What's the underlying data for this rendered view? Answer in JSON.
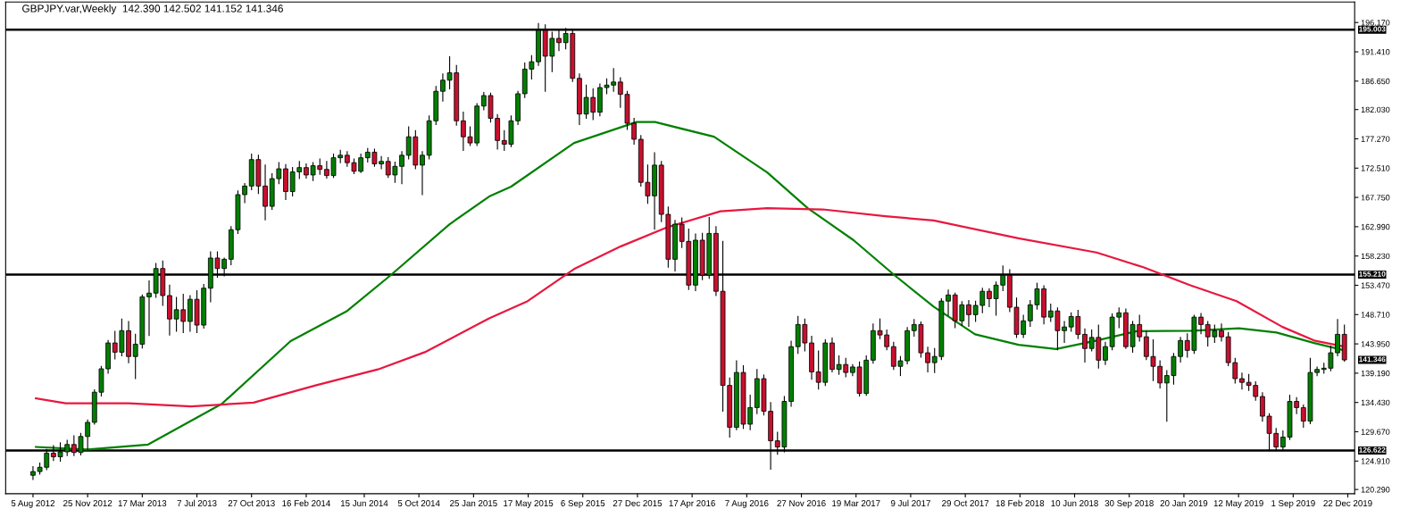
{
  "chart_data": {
    "type": "candlestick",
    "title": "GBPJPY.var,Weekly  142.390 142.502 141.152 141.346",
    "x": [
      "2012-08-05",
      "2012-08-19",
      "2012-09-02",
      "2012-09-16",
      "2012-09-30",
      "2012-10-14",
      "2012-10-28",
      "2012-11-11",
      "2012-11-25",
      "2012-12-09",
      "2012-12-23",
      "2013-01-06",
      "2013-01-20",
      "2013-02-03",
      "2013-02-17",
      "2013-03-03",
      "2013-03-17",
      "2013-03-31",
      "2013-04-14",
      "2013-04-28",
      "2013-05-12",
      "2013-05-26",
      "2013-06-09",
      "2013-06-23",
      "2013-07-07",
      "2013-07-21",
      "2013-08-04",
      "2013-08-18",
      "2013-09-01",
      "2013-09-15",
      "2013-09-29",
      "2013-10-13",
      "2013-10-27",
      "2013-11-10",
      "2013-11-24",
      "2013-12-08",
      "2013-12-22",
      "2014-01-05",
      "2014-01-19",
      "2014-02-02",
      "2014-02-16",
      "2014-03-02",
      "2014-03-16",
      "2014-03-30",
      "2014-04-13",
      "2014-04-27",
      "2014-05-11",
      "2014-05-25",
      "2014-06-08",
      "2014-06-22",
      "2014-07-06",
      "2014-07-20",
      "2014-08-03",
      "2014-08-17",
      "2014-08-31",
      "2014-09-14",
      "2014-09-28",
      "2014-10-12",
      "2014-10-26",
      "2014-11-09",
      "2014-11-23",
      "2014-12-07",
      "2014-12-21",
      "2015-01-04",
      "2015-01-18",
      "2015-02-01",
      "2015-02-15",
      "2015-03-01",
      "2015-03-15",
      "2015-03-29",
      "2015-04-12",
      "2015-04-26",
      "2015-05-10",
      "2015-05-24",
      "2015-06-07",
      "2015-06-21",
      "2015-07-05",
      "2015-07-19",
      "2015-08-02",
      "2015-08-16",
      "2015-08-30",
      "2015-09-13",
      "2015-09-27",
      "2015-10-11",
      "2015-10-25",
      "2015-11-08",
      "2015-11-22",
      "2015-12-06",
      "2015-12-20",
      "2016-01-03",
      "2016-01-17",
      "2016-01-31",
      "2016-02-14",
      "2016-02-28",
      "2016-03-13",
      "2016-03-27",
      "2016-04-10",
      "2016-04-24",
      "2016-05-08",
      "2016-05-22",
      "2016-06-05",
      "2016-06-19",
      "2016-07-03",
      "2016-07-17",
      "2016-07-31",
      "2016-08-14",
      "2016-08-28",
      "2016-09-11",
      "2016-09-25",
      "2016-10-09",
      "2016-10-23",
      "2016-11-06",
      "2016-11-20",
      "2016-12-04",
      "2016-12-18",
      "2017-01-01",
      "2017-01-15",
      "2017-01-29",
      "2017-02-12",
      "2017-02-26",
      "2017-03-12",
      "2017-03-26",
      "2017-04-09",
      "2017-04-23",
      "2017-05-07",
      "2017-05-21",
      "2017-06-04",
      "2017-06-18",
      "2017-07-02",
      "2017-07-16",
      "2017-07-30",
      "2017-08-13",
      "2017-08-27",
      "2017-09-10",
      "2017-09-24",
      "2017-10-08",
      "2017-10-22",
      "2017-11-05",
      "2017-11-19",
      "2017-12-03",
      "2017-12-17",
      "2017-12-31",
      "2018-01-14",
      "2018-01-28",
      "2018-02-11",
      "2018-02-25",
      "2018-03-11",
      "2018-03-25",
      "2018-04-08",
      "2018-04-22",
      "2018-05-06",
      "2018-05-20",
      "2018-06-03",
      "2018-06-17",
      "2018-07-01",
      "2018-07-15",
      "2018-07-29",
      "2018-08-12",
      "2018-08-26",
      "2018-09-09",
      "2018-09-23",
      "2018-10-07",
      "2018-10-21",
      "2018-11-04",
      "2018-11-18",
      "2018-12-02",
      "2018-12-16",
      "2018-12-30",
      "2019-01-13",
      "2019-01-27",
      "2019-02-10",
      "2019-02-24",
      "2019-03-10",
      "2019-03-24",
      "2019-04-07",
      "2019-04-21",
      "2019-05-05",
      "2019-05-19",
      "2019-06-02",
      "2019-06-16",
      "2019-06-30",
      "2019-07-14",
      "2019-07-28",
      "2019-08-11",
      "2019-08-25",
      "2019-09-08",
      "2019-09-22",
      "2019-10-06",
      "2019-10-20",
      "2019-11-03",
      "2019-11-17",
      "2019-12-01",
      "2019-12-15"
    ],
    "ohlc": [
      [
        122.6,
        124.0,
        121.9,
        123.2
      ],
      [
        123.2,
        124.6,
        122.8,
        123.9
      ],
      [
        123.9,
        126.8,
        123.5,
        126.2
      ],
      [
        126.2,
        127.4,
        125.0,
        125.6
      ],
      [
        125.6,
        127.9,
        124.9,
        126.4
      ],
      [
        126.4,
        128.3,
        125.8,
        127.6
      ],
      [
        127.6,
        129.0,
        125.8,
        126.3
      ],
      [
        126.3,
        129.4,
        125.9,
        128.9
      ],
      [
        128.9,
        131.6,
        126.8,
        131.2
      ],
      [
        131.2,
        136.5,
        130.9,
        136.1
      ],
      [
        136.1,
        140.3,
        135.5,
        139.9
      ],
      [
        139.9,
        144.5,
        139.2,
        144.1
      ],
      [
        144.1,
        146.0,
        141.5,
        142.6
      ],
      [
        142.6,
        148.0,
        142.0,
        146.1
      ],
      [
        146.1,
        147.6,
        140.9,
        141.9
      ],
      [
        141.9,
        145.5,
        138.3,
        143.9
      ],
      [
        143.9,
        151.9,
        143.3,
        151.6
      ],
      [
        151.6,
        154.2,
        145.3,
        152.2
      ],
      [
        152.2,
        157.0,
        151.5,
        156.2
      ],
      [
        156.2,
        157.4,
        150.2,
        151.8
      ],
      [
        151.8,
        153.5,
        145.4,
        148.0
      ],
      [
        148.0,
        151.5,
        146.0,
        149.5
      ],
      [
        149.5,
        152.0,
        145.8,
        147.6
      ],
      [
        147.6,
        151.8,
        146.0,
        151.2
      ],
      [
        151.2,
        152.6,
        145.8,
        147.0
      ],
      [
        147.0,
        153.6,
        146.5,
        153.0
      ],
      [
        153.0,
        158.9,
        150.8,
        157.9
      ],
      [
        157.9,
        158.9,
        154.8,
        156.2
      ],
      [
        156.2,
        157.9,
        155.0,
        157.7
      ],
      [
        157.7,
        163.0,
        156.8,
        162.5
      ],
      [
        162.5,
        168.8,
        161.9,
        168.2
      ],
      [
        168.2,
        170.0,
        166.9,
        169.6
      ],
      [
        169.6,
        174.8,
        169.0,
        173.9
      ],
      [
        173.9,
        174.6,
        168.4,
        169.6
      ],
      [
        169.6,
        173.0,
        164.1,
        166.3
      ],
      [
        166.3,
        171.6,
        165.8,
        170.8
      ],
      [
        170.8,
        173.4,
        170.0,
        172.4
      ],
      [
        172.4,
        173.1,
        167.4,
        168.7
      ],
      [
        168.7,
        172.6,
        168.0,
        171.9
      ],
      [
        171.9,
        173.6,
        170.8,
        172.6
      ],
      [
        172.6,
        173.2,
        170.9,
        171.4
      ],
      [
        171.4,
        173.4,
        170.5,
        172.9
      ],
      [
        172.9,
        174.0,
        171.5,
        172.3
      ],
      [
        172.3,
        173.6,
        170.9,
        171.3
      ],
      [
        171.3,
        174.8,
        171.0,
        174.2
      ],
      [
        174.2,
        175.4,
        173.4,
        174.6
      ],
      [
        174.6,
        175.2,
        172.8,
        173.4
      ],
      [
        173.4,
        174.0,
        171.6,
        172.0
      ],
      [
        172.0,
        174.8,
        171.8,
        174.2
      ],
      [
        174.2,
        175.7,
        173.5,
        175.1
      ],
      [
        175.1,
        175.6,
        172.8,
        173.2
      ],
      [
        173.2,
        174.4,
        172.4,
        173.6
      ],
      [
        173.6,
        174.2,
        171.0,
        171.4
      ],
      [
        171.4,
        173.5,
        170.2,
        172.8
      ],
      [
        172.8,
        175.2,
        170.0,
        174.6
      ],
      [
        174.6,
        179.2,
        174.0,
        177.6
      ],
      [
        177.6,
        178.6,
        172.4,
        173.0
      ],
      [
        173.0,
        175.2,
        168.2,
        174.6
      ],
      [
        174.6,
        181.0,
        174.0,
        180.2
      ],
      [
        180.2,
        185.8,
        179.6,
        185.0
      ],
      [
        185.0,
        187.8,
        183.4,
        186.8
      ],
      [
        186.8,
        190.6,
        185.4,
        188.0
      ],
      [
        188.0,
        189.2,
        179.5,
        180.2
      ],
      [
        180.2,
        181.6,
        175.4,
        177.6
      ],
      [
        177.6,
        179.2,
        176.2,
        176.6
      ],
      [
        176.6,
        183.0,
        176.2,
        182.6
      ],
      [
        182.6,
        184.8,
        182.0,
        184.3
      ],
      [
        184.3,
        184.7,
        180.0,
        180.6
      ],
      [
        180.6,
        181.2,
        175.6,
        177.0
      ],
      [
        177.0,
        178.6,
        175.4,
        176.4
      ],
      [
        176.4,
        181.0,
        176.0,
        180.2
      ],
      [
        180.2,
        185.0,
        179.6,
        184.6
      ],
      [
        184.6,
        189.6,
        184.0,
        188.6
      ],
      [
        188.6,
        190.8,
        187.0,
        189.8
      ],
      [
        189.8,
        196.0,
        189.2,
        194.9
      ],
      [
        194.9,
        195.8,
        185.0,
        190.7
      ],
      [
        190.7,
        194.6,
        188.2,
        193.6
      ],
      [
        193.6,
        195.0,
        191.6,
        192.9
      ],
      [
        192.9,
        195.2,
        191.9,
        194.4
      ],
      [
        194.4,
        194.9,
        186.6,
        187.1
      ],
      [
        187.1,
        187.8,
        179.6,
        181.3
      ],
      [
        181.3,
        186.0,
        180.6,
        184.0
      ],
      [
        184.0,
        185.4,
        180.4,
        181.6
      ],
      [
        181.6,
        186.2,
        181.0,
        185.6
      ],
      [
        185.6,
        187.0,
        184.6,
        186.0
      ],
      [
        186.0,
        188.7,
        185.0,
        186.5
      ],
      [
        186.5,
        187.2,
        182.4,
        184.5
      ],
      [
        184.5,
        185.0,
        178.8,
        179.8
      ],
      [
        179.8,
        180.6,
        176.4,
        177.2
      ],
      [
        177.2,
        177.8,
        169.6,
        170.2
      ],
      [
        170.2,
        173.0,
        166.8,
        168.0
      ],
      [
        168.0,
        175.0,
        162.6,
        173.0
      ],
      [
        173.0,
        173.6,
        163.8,
        165.0
      ],
      [
        165.0,
        166.2,
        156.4,
        157.7
      ],
      [
        157.7,
        164.0,
        155.8,
        163.4
      ],
      [
        163.4,
        164.4,
        159.6,
        160.6
      ],
      [
        160.6,
        162.6,
        152.8,
        153.5
      ],
      [
        153.5,
        161.8,
        152.6,
        160.8
      ],
      [
        160.8,
        161.9,
        154.4,
        155.1
      ],
      [
        155.1,
        164.5,
        154.6,
        161.9
      ],
      [
        161.9,
        163.0,
        151.8,
        152.5
      ],
      [
        152.5,
        160.6,
        133.0,
        137.2
      ],
      [
        137.2,
        138.4,
        128.8,
        130.4
      ],
      [
        130.4,
        141.2,
        130.0,
        139.3
      ],
      [
        139.3,
        140.4,
        130.2,
        130.9
      ],
      [
        130.9,
        135.6,
        130.0,
        133.6
      ],
      [
        133.6,
        139.8,
        132.6,
        138.3
      ],
      [
        138.3,
        138.9,
        132.4,
        133.0
      ],
      [
        133.0,
        134.4,
        123.6,
        128.2
      ],
      [
        128.2,
        129.6,
        126.0,
        127.2
      ],
      [
        127.2,
        135.4,
        126.4,
        134.6
      ],
      [
        134.6,
        144.4,
        133.8,
        143.5
      ],
      [
        143.5,
        148.4,
        142.4,
        147.1
      ],
      [
        147.1,
        148.0,
        142.8,
        144.1
      ],
      [
        144.1,
        145.2,
        138.2,
        139.4
      ],
      [
        139.4,
        142.8,
        136.6,
        137.7
      ],
      [
        137.7,
        144.6,
        137.2,
        144.1
      ],
      [
        144.1,
        144.9,
        139.4,
        139.8
      ],
      [
        139.8,
        142.0,
        139.0,
        140.6
      ],
      [
        140.6,
        141.6,
        138.6,
        139.3
      ],
      [
        139.3,
        140.6,
        138.8,
        140.2
      ],
      [
        140.2,
        141.0,
        135.5,
        135.9
      ],
      [
        135.9,
        142.0,
        135.6,
        141.3
      ],
      [
        141.3,
        147.2,
        140.8,
        146.1
      ],
      [
        146.1,
        148.0,
        144.8,
        145.4
      ],
      [
        145.4,
        146.2,
        143.0,
        143.5
      ],
      [
        143.5,
        144.2,
        139.8,
        140.3
      ],
      [
        140.3,
        141.9,
        138.8,
        141.2
      ],
      [
        141.2,
        146.6,
        140.7,
        146.1
      ],
      [
        146.1,
        147.9,
        145.2,
        147.1
      ],
      [
        147.1,
        147.5,
        141.8,
        142.5
      ],
      [
        142.5,
        143.4,
        139.4,
        140.9
      ],
      [
        140.9,
        143.2,
        139.3,
        141.9
      ],
      [
        141.9,
        151.3,
        141.4,
        150.9
      ],
      [
        150.9,
        152.7,
        148.6,
        151.9
      ],
      [
        151.9,
        152.2,
        146.6,
        147.7
      ],
      [
        147.7,
        150.8,
        147.0,
        150.3
      ],
      [
        150.3,
        151.0,
        146.8,
        148.7
      ],
      [
        148.7,
        150.9,
        147.6,
        150.2
      ],
      [
        150.2,
        153.0,
        149.0,
        152.5
      ],
      [
        152.5,
        152.9,
        150.0,
        151.3
      ],
      [
        151.3,
        154.0,
        148.6,
        153.5
      ],
      [
        153.5,
        156.6,
        152.6,
        155.1
      ],
      [
        155.1,
        156.0,
        149.2,
        149.9
      ],
      [
        149.9,
        151.4,
        145.0,
        145.5
      ],
      [
        145.5,
        148.6,
        145.0,
        147.7
      ],
      [
        147.7,
        151.0,
        146.8,
        150.3
      ],
      [
        150.3,
        153.8,
        149.6,
        152.9
      ],
      [
        152.9,
        153.4,
        147.2,
        148.3
      ],
      [
        148.3,
        150.4,
        147.6,
        149.3
      ],
      [
        149.3,
        149.8,
        143.0,
        146.1
      ],
      [
        146.1,
        147.6,
        144.2,
        146.7
      ],
      [
        146.7,
        149.0,
        146.0,
        148.4
      ],
      [
        148.4,
        149.4,
        144.8,
        145.5
      ],
      [
        145.5,
        146.4,
        141.0,
        143.2
      ],
      [
        143.2,
        146.2,
        142.8,
        145.0
      ],
      [
        145.0,
        147.0,
        140.0,
        141.3
      ],
      [
        141.3,
        144.2,
        140.6,
        143.5
      ],
      [
        143.5,
        148.8,
        143.0,
        148.3
      ],
      [
        148.3,
        149.8,
        146.6,
        149.0
      ],
      [
        149.0,
        149.6,
        143.2,
        143.5
      ],
      [
        143.5,
        147.6,
        142.6,
        147.1
      ],
      [
        147.1,
        148.6,
        144.4,
        145.1
      ],
      [
        145.1,
        146.0,
        141.4,
        141.9
      ],
      [
        141.9,
        144.6,
        138.0,
        140.3
      ],
      [
        140.3,
        141.2,
        136.8,
        137.6
      ],
      [
        137.6,
        139.6,
        131.4,
        138.8
      ],
      [
        138.8,
        142.4,
        137.4,
        141.9
      ],
      [
        141.9,
        145.0,
        141.0,
        144.5
      ],
      [
        144.5,
        145.6,
        141.8,
        142.9
      ],
      [
        142.9,
        148.6,
        142.4,
        148.3
      ],
      [
        148.3,
        148.9,
        145.6,
        147.1
      ],
      [
        147.1,
        147.6,
        143.6,
        145.1
      ],
      [
        145.1,
        147.0,
        144.2,
        146.1
      ],
      [
        146.1,
        147.2,
        144.4,
        145.1
      ],
      [
        145.1,
        145.8,
        140.4,
        140.9
      ],
      [
        140.9,
        141.6,
        137.6,
        138.3
      ],
      [
        138.3,
        139.2,
        136.6,
        137.7
      ],
      [
        137.7,
        139.0,
        136.4,
        137.2
      ],
      [
        137.2,
        137.8,
        134.8,
        135.4
      ],
      [
        135.4,
        136.0,
        131.4,
        132.2
      ],
      [
        132.2,
        132.6,
        126.6,
        129.4
      ],
      [
        129.4,
        130.2,
        126.6,
        127.2
      ],
      [
        127.2,
        129.8,
        126.6,
        128.8
      ],
      [
        128.8,
        135.6,
        128.4,
        134.6
      ],
      [
        134.6,
        135.2,
        132.6,
        133.6
      ],
      [
        133.6,
        134.0,
        130.4,
        131.4
      ],
      [
        131.4,
        141.6,
        131.0,
        139.3
      ],
      [
        139.3,
        140.2,
        138.8,
        139.8
      ],
      [
        139.8,
        140.8,
        139.2,
        140.0
      ],
      [
        140.0,
        143.6,
        139.6,
        142.5
      ],
      [
        142.5,
        147.9,
        142.0,
        145.5
      ],
      [
        145.5,
        147.0,
        141.152,
        141.346
      ]
    ],
    "series": [
      {
        "type": "line",
        "color": "#008000",
        "x": [
          "2012-08-11",
          "2012-11-25",
          "2013-03-29",
          "2013-08-27",
          "2014-01-15",
          "2014-05-11",
          "2014-08-08",
          "2014-12-07",
          "2015-02-26",
          "2015-04-12",
          "2015-08-19",
          "2015-12-25",
          "2016-02-01",
          "2016-06-01",
          "2016-09-18",
          "2016-12-10",
          "2017-03-14",
          "2017-06-06",
          "2017-08-25",
          "2017-11-18",
          "2018-02-15",
          "2018-05-03",
          "2018-07-25",
          "2018-10-15",
          "2019-02-08",
          "2019-05-13",
          "2019-07-29",
          "2019-10-14",
          "2019-12-15"
        ],
        "values": [
          127.2,
          126.8,
          127.6,
          134.2,
          144.4,
          149.3,
          155.1,
          163.4,
          167.9,
          169.5,
          176.6,
          180.0,
          180.0,
          177.6,
          171.8,
          166.0,
          160.8,
          155.1,
          150.0,
          145.5,
          143.8,
          143.1,
          144.5,
          146.0,
          146.1,
          146.5,
          145.8,
          144.1,
          142.9
        ]
      },
      {
        "type": "line",
        "color": "#e8173f",
        "x": [
          "2012-08-11",
          "2012-10-11",
          "2013-02-17",
          "2013-06-25",
          "2013-10-31",
          "2014-03-07",
          "2014-07-13",
          "2014-10-17",
          "2015-02-26",
          "2015-05-16",
          "2015-08-19",
          "2015-11-23",
          "2016-02-26",
          "2016-06-14",
          "2016-09-18",
          "2017-01-10",
          "2017-05-18",
          "2017-08-25",
          "2018-02-15",
          "2018-07-25",
          "2018-10-29",
          "2019-02-01",
          "2019-05-08",
          "2019-08-10",
          "2019-10-14",
          "2019-12-15"
        ],
        "values": [
          135.1,
          134.3,
          134.3,
          133.8,
          134.4,
          137.2,
          139.8,
          142.6,
          148.1,
          150.9,
          156.1,
          159.8,
          162.9,
          165.5,
          166.0,
          165.8,
          164.7,
          164.0,
          161.1,
          158.8,
          156.4,
          153.5,
          150.9,
          146.7,
          144.5,
          143.5
        ]
      }
    ],
    "ref_lines": [
      {
        "axis": "y",
        "value": 195.003,
        "label": "195.003",
        "color": "#000000"
      },
      {
        "axis": "y",
        "value": 155.21,
        "label": "155.210",
        "color": "#000000"
      },
      {
        "axis": "y",
        "value": 126.622,
        "label": "126.622",
        "color": "#000000"
      }
    ],
    "annotations": [
      {
        "text": "141.346",
        "x": "2019-12-15",
        "y": 141.346
      }
    ],
    "xlim": [
      "2012-06-10",
      "2020-01-05"
    ],
    "ylim": [
      119.6,
      199.5
    ],
    "xticks": [
      {
        "value": "2012-08-05",
        "label": "5 Aug 2012"
      },
      {
        "value": "2012-11-25",
        "label": "25 Nov 2012"
      },
      {
        "value": "2013-03-17",
        "label": "17 Mar 2013"
      },
      {
        "value": "2013-07-07",
        "label": "7 Jul 2013"
      },
      {
        "value": "2013-10-27",
        "label": "27 Oct 2013"
      },
      {
        "value": "2014-02-16",
        "label": "16 Feb 2014"
      },
      {
        "value": "2014-06-15",
        "label": "15 Jun 2014"
      },
      {
        "value": "2014-10-05",
        "label": "5 Oct 2014"
      },
      {
        "value": "2015-01-25",
        "label": "25 Jan 2015"
      },
      {
        "value": "2015-05-17",
        "label": "17 May 2015"
      },
      {
        "value": "2015-09-06",
        "label": "6 Sep 2015"
      },
      {
        "value": "2015-12-27",
        "label": "27 Dec 2015"
      },
      {
        "value": "2016-04-17",
        "label": "17 Apr 2016"
      },
      {
        "value": "2016-08-07",
        "label": "7 Aug 2016"
      },
      {
        "value": "2016-11-27",
        "label": "27 Nov 2016"
      },
      {
        "value": "2017-03-19",
        "label": "19 Mar 2017"
      },
      {
        "value": "2017-07-09",
        "label": "9 Jul 2017"
      },
      {
        "value": "2017-10-29",
        "label": "29 Oct 2017"
      },
      {
        "value": "2018-02-18",
        "label": "18 Feb 2018"
      },
      {
        "value": "2018-06-10",
        "label": "10 Jun 2018"
      },
      {
        "value": "2018-09-30",
        "label": "30 Sep 2018"
      },
      {
        "value": "2019-01-20",
        "label": "20 Jan 2019"
      },
      {
        "value": "2019-05-12",
        "label": "12 May 2019"
      },
      {
        "value": "2019-09-01",
        "label": "1 Sep 2019"
      },
      {
        "value": "2019-12-22",
        "label": "22 Dec 2019"
      }
    ],
    "yticks": [
      {
        "value": 120.29,
        "label": "120.290"
      },
      {
        "value": 124.91,
        "label": "124.910"
      },
      {
        "value": 129.67,
        "label": "129.670"
      },
      {
        "value": 134.43,
        "label": "134.430"
      },
      {
        "value": 139.19,
        "label": "139.190"
      },
      {
        "value": 143.95,
        "label": "143.950"
      },
      {
        "value": 148.71,
        "label": "148.710"
      },
      {
        "value": 153.47,
        "label": "153.470"
      },
      {
        "value": 158.23,
        "label": "158.230"
      },
      {
        "value": 162.99,
        "label": "162.990"
      },
      {
        "value": 167.75,
        "label": "167.750"
      },
      {
        "value": 172.51,
        "label": "172.510"
      },
      {
        "value": 177.27,
        "label": "177.270"
      },
      {
        "value": 182.03,
        "label": "182.030"
      },
      {
        "value": 186.65,
        "label": "186.650"
      },
      {
        "value": 191.41,
        "label": "191.410"
      },
      {
        "value": 196.17,
        "label": "196.170"
      }
    ]
  }
}
